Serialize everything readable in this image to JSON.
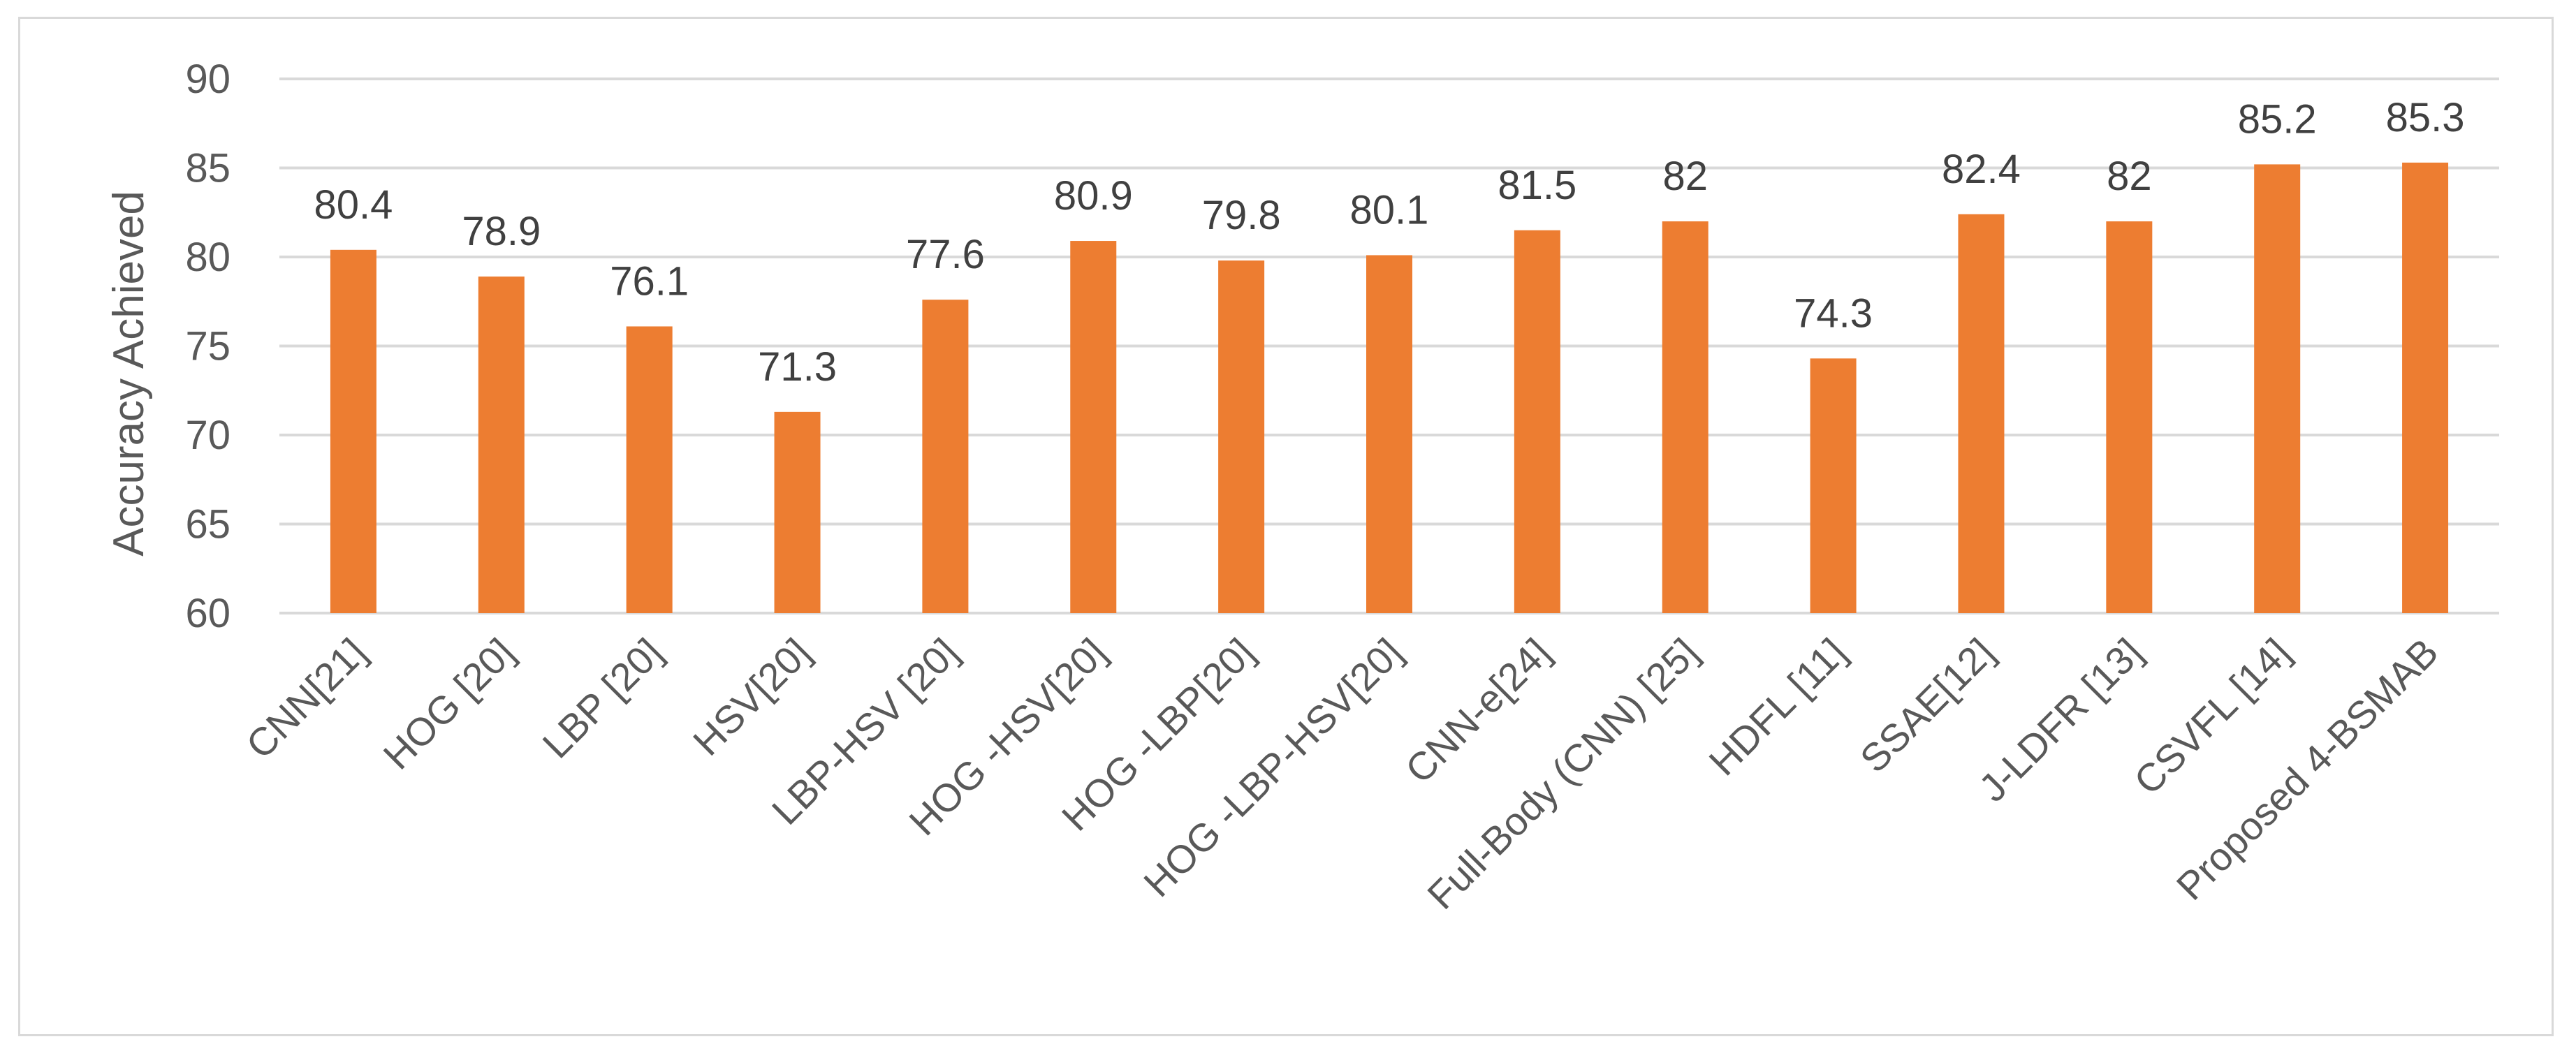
{
  "chart_data": {
    "type": "bar",
    "title": "",
    "xlabel": "",
    "ylabel": "Accuracy Achieved",
    "ylim": [
      60,
      90
    ],
    "yticks": [
      60,
      65,
      70,
      75,
      80,
      85,
      90
    ],
    "grid": true,
    "legend": "none",
    "bar_color": "#ED7D31",
    "categories": [
      "CNN[21]",
      "HOG [20]",
      "LBP [20]",
      "HSV[20]",
      "LBP-HSV [20]",
      "HOG -HSV[20]",
      "HOG -LBP[20]",
      "HOG -LBP-HSV[20]",
      "CNN-e[24]",
      "Full-Body (CNN) [25]",
      "HDFL [11]",
      "SSAE[12]",
      "J-LDFR [13]",
      "CSVFL [14]",
      "Proposed 4-BSMAB"
    ],
    "values": [
      80.4,
      78.9,
      76.1,
      71.3,
      77.6,
      80.9,
      79.8,
      80.1,
      81.5,
      82,
      74.3,
      82.4,
      82,
      85.2,
      85.3
    ],
    "data_labels": [
      "80.4",
      "78.9",
      "76.1",
      "71.3",
      "77.6",
      "80.9",
      "79.8",
      "80.1",
      "81.5",
      "82",
      "74.3",
      "82.4",
      "82",
      "85.2",
      "85.3"
    ]
  }
}
